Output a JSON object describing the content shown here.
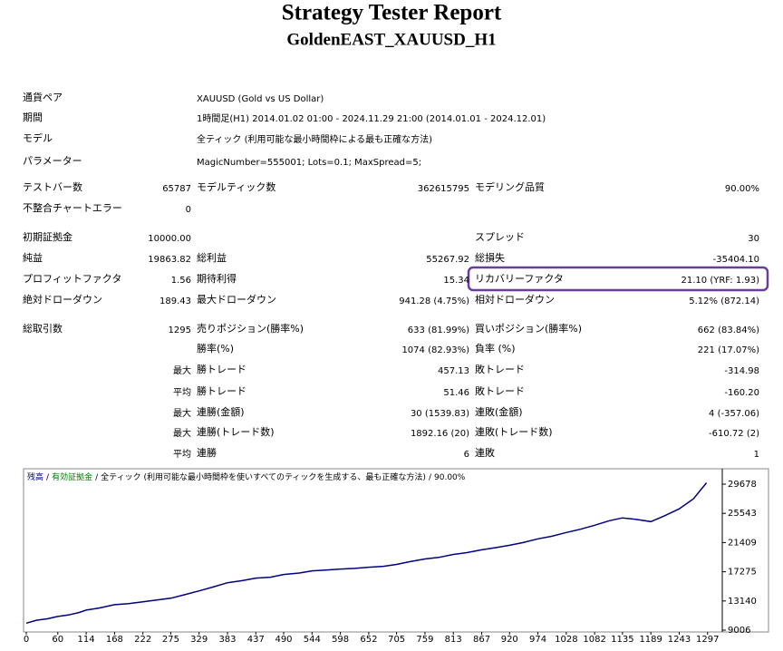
{
  "header": {
    "title": "Strategy Tester Report",
    "subtitle": "GoldenEAST_XAUUSD_H1"
  },
  "info": [
    [
      "通貨ペア",
      "XAUUSD (Gold vs US Dollar)"
    ],
    [
      "期間",
      "1時間足(H1) 2014.01.02 01:00 - 2024.11.29 21:00 (2014.01.01 - 2024.12.01)"
    ],
    [
      "モデル",
      "全ティック (利用可能な最小時間枠による最も正確な方法)"
    ],
    [
      "パラメーター",
      "MagicNumber=555001; Lots=0.1; MaxSpread=5;"
    ]
  ],
  "stats": [
    [
      "テストバー数",
      "65787",
      "モデルティック数",
      "362615795",
      "モデリング品質",
      "90.00%"
    ],
    [
      "不整合チャートエラー",
      "0",
      null,
      null,
      null,
      null
    ],
    [
      "初期証拠金",
      "10000.00",
      null,
      null,
      "スプレッド",
      "30"
    ],
    [
      "純益",
      "19863.82",
      "総利益",
      "55267.92",
      "総損失",
      "-35404.10"
    ],
    [
      "プロフィットファクタ",
      "1.56",
      "期待利得",
      "15.34",
      "リカバリーファクタ",
      "21.10 (YRF: 1.93)"
    ],
    [
      "絶対ドローダウン",
      "189.43",
      "最大ドローダウン",
      "941.28 (4.75%)",
      "相対ドローダウン",
      "5.12% (872.14)"
    ],
    [
      "総取引数",
      "1295",
      "売りポジション(勝率%)",
      "633 (81.99%)",
      "買いポジション(勝率%)",
      "662 (83.84%)"
    ],
    [
      null,
      null,
      "勝率(%)",
      "1074 (82.93%)",
      "負率 (%)",
      "221 (17.07%)"
    ],
    [
      null,
      "最大",
      "勝トレード",
      "457.13",
      "敗トレード",
      "-314.98"
    ],
    [
      null,
      "平均",
      "勝トレード",
      "51.46",
      "敗トレード",
      "-160.20"
    ],
    [
      null,
      "最大",
      "連勝(金額)",
      "30 (1539.83)",
      "連敗(金額)",
      "4 (-357.06)"
    ],
    [
      null,
      "最大",
      "連勝(トレード数)",
      "1892.16 (20)",
      "連敗(トレード数)",
      "-610.72 (2)"
    ],
    [
      null,
      "平均",
      "連勝",
      "6",
      "連敗",
      "1"
    ]
  ],
  "chart_data": {
    "type": "line",
    "x": [
      0,
      20,
      40,
      60,
      80,
      100,
      114,
      140,
      168,
      195,
      222,
      250,
      275,
      300,
      329,
      355,
      383,
      410,
      437,
      465,
      490,
      520,
      544,
      570,
      598,
      625,
      652,
      680,
      705,
      730,
      759,
      785,
      813,
      840,
      867,
      895,
      920,
      945,
      974,
      1000,
      1028,
      1055,
      1082,
      1110,
      1135,
      1160,
      1189,
      1215,
      1243,
      1270,
      1295
    ],
    "series": [
      {
        "name": "残高",
        "color": "#000080",
        "values": [
          10000,
          10420,
          10610,
          10944,
          11150,
          11500,
          11850,
          12150,
          12620,
          12750,
          13010,
          13300,
          13530,
          14000,
          14560,
          15100,
          15720,
          16000,
          16370,
          16500,
          16890,
          17100,
          17400,
          17500,
          17660,
          17750,
          17920,
          18050,
          18310,
          18700,
          19080,
          19300,
          19730,
          20000,
          20380,
          20700,
          21020,
          21400,
          21930,
          22300,
          22830,
          23300,
          23860,
          24500,
          24900,
          24700,
          24380,
          25200,
          26190,
          27600,
          29864
        ]
      }
    ],
    "legend_separator": "/",
    "legend_notes": [
      {
        "text": "有効証拠金",
        "color": "#008000"
      },
      {
        "text": "全ティック (利用可能な最小時間枠を使いすべてのティックを生成する、最も正確な方法)",
        "color": "#000000"
      },
      {
        "text": "90.00%",
        "color": "#000000"
      }
    ],
    "xlim": [
      0,
      1325
    ],
    "ylim": [
      8750,
      31860
    ],
    "xticks": [
      0,
      60,
      114,
      168,
      222,
      275,
      329,
      383,
      437,
      490,
      544,
      598,
      652,
      705,
      759,
      813,
      867,
      920,
      974,
      1028,
      1082,
      1135,
      1189,
      1243,
      1297
    ],
    "yticks": [
      29678,
      25543,
      21409,
      17275,
      13140,
      9006
    ],
    "grid": false
  }
}
